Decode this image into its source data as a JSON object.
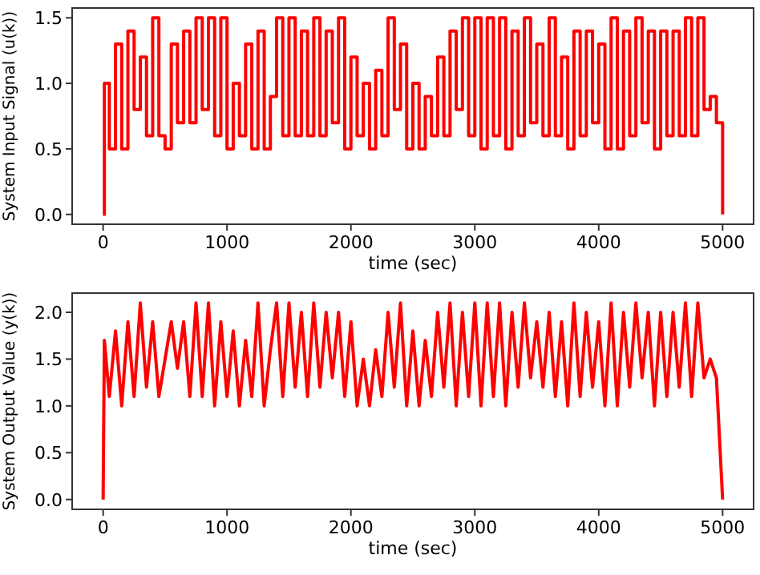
{
  "chart_data": [
    {
      "type": "step",
      "xlabel": "time (sec)",
      "ylabel": "System Input Signal (u(k))",
      "xlim": [
        -250,
        5250
      ],
      "ylim": [
        -0.075,
        1.575
      ],
      "xticks": [
        0,
        1000,
        2000,
        3000,
        4000,
        5000
      ],
      "yticks": [
        {
          "value": 0,
          "label": "0.0"
        },
        {
          "value": 0.5,
          "label": "0.5"
        },
        {
          "value": 1,
          "label": "1.0"
        },
        {
          "value": 1.5,
          "label": "1.5"
        }
      ],
      "x": [
        0,
        10,
        50,
        100,
        150,
        200,
        250,
        300,
        350,
        400,
        450,
        500,
        550,
        600,
        650,
        700,
        750,
        800,
        850,
        900,
        950,
        1000,
        1050,
        1100,
        1150,
        1200,
        1250,
        1300,
        1350,
        1400,
        1450,
        1500,
        1550,
        1600,
        1650,
        1700,
        1750,
        1800,
        1850,
        1900,
        1950,
        2000,
        2050,
        2100,
        2150,
        2200,
        2250,
        2300,
        2350,
        2400,
        2450,
        2500,
        2550,
        2600,
        2650,
        2700,
        2750,
        2800,
        2850,
        2900,
        2950,
        3000,
        3050,
        3100,
        3150,
        3200,
        3250,
        3300,
        3350,
        3400,
        3450,
        3500,
        3550,
        3600,
        3650,
        3700,
        3750,
        3800,
        3850,
        3900,
        3950,
        4000,
        4050,
        4100,
        4150,
        4200,
        4250,
        4300,
        4350,
        4400,
        4450,
        4500,
        4550,
        4600,
        4650,
        4700,
        4750,
        4800,
        4850,
        4900,
        4950,
        5000
      ],
      "series": [
        {
          "color": "#ff0000",
          "values": [
            0,
            1.0,
            0.5,
            1.3,
            0.5,
            1.4,
            0.8,
            1.2,
            0.6,
            1.5,
            0.6,
            0.5,
            1.3,
            0.7,
            1.4,
            0.7,
            1.5,
            0.8,
            1.5,
            0.6,
            1.5,
            0.5,
            1.0,
            0.6,
            1.3,
            0.5,
            1.4,
            0.5,
            0.9,
            1.5,
            0.6,
            1.5,
            0.6,
            1.4,
            0.6,
            1.5,
            0.6,
            1.4,
            0.7,
            1.5,
            0.5,
            1.2,
            0.6,
            1.0,
            0.5,
            1.1,
            0.6,
            1.5,
            0.8,
            1.3,
            0.5,
            1.0,
            0.5,
            0.9,
            0.6,
            1.2,
            0.6,
            1.4,
            0.8,
            1.5,
            0.6,
            1.5,
            0.5,
            1.5,
            0.6,
            1.5,
            0.5,
            1.4,
            0.6,
            1.5,
            0.7,
            1.3,
            0.6,
            1.5,
            0.6,
            1.2,
            0.5,
            1.4,
            0.6,
            1.4,
            0.7,
            1.3,
            0.5,
            1.5,
            0.5,
            1.4,
            0.6,
            1.5,
            0.7,
            1.4,
            0.5,
            1.4,
            0.6,
            1.4,
            0.6,
            1.5,
            0.6,
            1.5,
            0.8,
            0.9,
            0.7,
            0
          ]
        }
      ]
    },
    {
      "type": "line",
      "xlabel": "time (sec)",
      "ylabel": "System Output Value (y(k))",
      "xlim": [
        -250,
        5250
      ],
      "ylim": [
        -0.105,
        2.205
      ],
      "xticks": [
        0,
        1000,
        2000,
        3000,
        4000,
        5000
      ],
      "yticks": [
        {
          "value": 0,
          "label": "0.0"
        },
        {
          "value": 0.5,
          "label": "0.5"
        },
        {
          "value": 1,
          "label": "1.0"
        },
        {
          "value": 1.5,
          "label": "1.5"
        },
        {
          "value": 2,
          "label": "2.0"
        }
      ],
      "x": [
        0,
        10,
        50,
        100,
        150,
        200,
        250,
        300,
        350,
        400,
        450,
        500,
        550,
        600,
        650,
        700,
        750,
        800,
        850,
        900,
        950,
        1000,
        1050,
        1100,
        1150,
        1200,
        1250,
        1300,
        1350,
        1400,
        1450,
        1500,
        1550,
        1600,
        1650,
        1700,
        1750,
        1800,
        1850,
        1900,
        1950,
        2000,
        2050,
        2100,
        2150,
        2200,
        2250,
        2300,
        2350,
        2400,
        2450,
        2500,
        2550,
        2600,
        2650,
        2700,
        2750,
        2800,
        2850,
        2900,
        2950,
        3000,
        3050,
        3100,
        3150,
        3200,
        3250,
        3300,
        3350,
        3400,
        3450,
        3500,
        3550,
        3600,
        3650,
        3700,
        3750,
        3800,
        3850,
        3900,
        3950,
        4000,
        4050,
        4100,
        4150,
        4200,
        4250,
        4300,
        4350,
        4400,
        4450,
        4500,
        4550,
        4600,
        4650,
        4700,
        4750,
        4800,
        4850,
        4900,
        4950,
        5000
      ],
      "series": [
        {
          "color": "#ff0000",
          "values": [
            0,
            1.7,
            1.1,
            1.8,
            1.0,
            1.9,
            1.1,
            2.1,
            1.2,
            1.9,
            1.1,
            1.5,
            1.9,
            1.4,
            1.9,
            1.1,
            2.1,
            1.1,
            2.1,
            1.0,
            1.9,
            1.1,
            1.8,
            1.0,
            1.7,
            1.1,
            2.1,
            1.0,
            1.6,
            2.1,
            1.1,
            2.1,
            1.2,
            2.0,
            1.1,
            2.1,
            1.2,
            2.0,
            1.3,
            2.0,
            1.1,
            1.9,
            1.0,
            1.5,
            1.0,
            1.6,
            1.1,
            2.0,
            1.2,
            2.1,
            1.0,
            1.8,
            1.0,
            1.7,
            1.1,
            2.0,
            1.2,
            2.1,
            1.0,
            2.0,
            1.1,
            2.1,
            1.0,
            2.1,
            1.1,
            2.1,
            1.0,
            2.0,
            1.2,
            2.1,
            1.3,
            1.9,
            1.2,
            2.0,
            1.1,
            1.9,
            1.0,
            2.1,
            1.1,
            2.0,
            1.2,
            1.9,
            1.0,
            2.1,
            1.0,
            2.0,
            1.2,
            2.1,
            1.3,
            2.0,
            1.0,
            2.0,
            1.1,
            2.0,
            1.2,
            2.1,
            1.1,
            2.1,
            1.3,
            1.5,
            1.3,
            0
          ]
        }
      ]
    }
  ]
}
